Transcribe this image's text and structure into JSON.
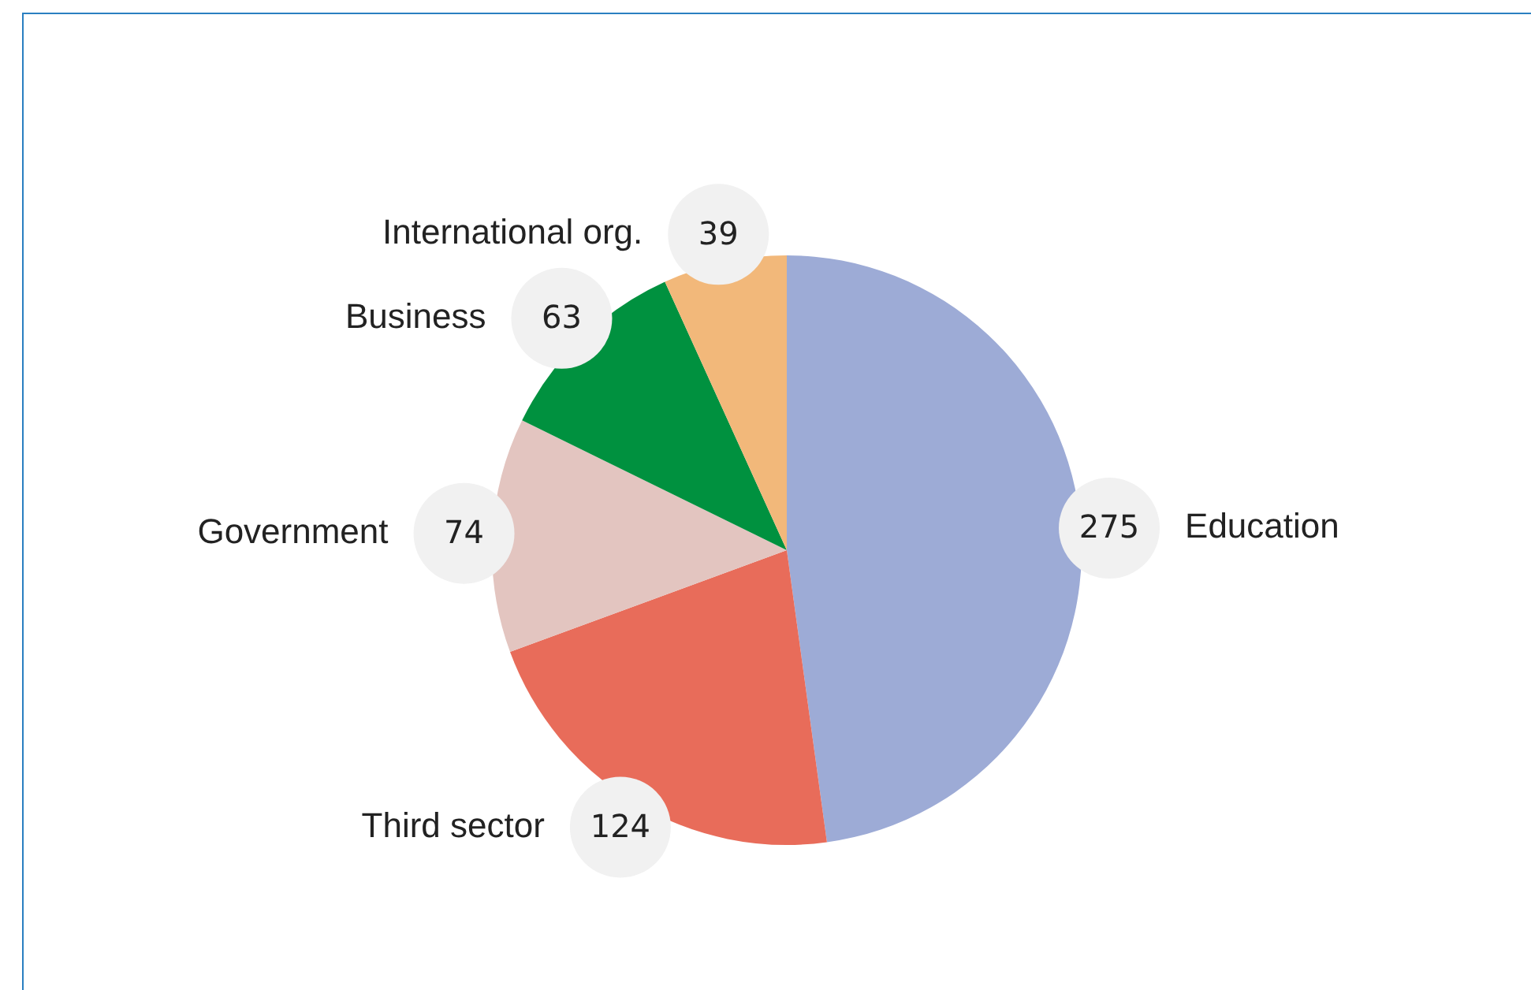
{
  "chart_data": {
    "type": "pie",
    "categories": [
      "Education",
      "Third sector",
      "Government",
      "Business",
      "International org."
    ],
    "values": [
      275,
      124,
      74,
      63,
      39
    ],
    "colors": [
      "#9dabd6",
      "#e86c5a",
      "#e3c5c0",
      "#00913f",
      "#f2b87a"
    ],
    "data_labels": true,
    "legend": false
  }
}
